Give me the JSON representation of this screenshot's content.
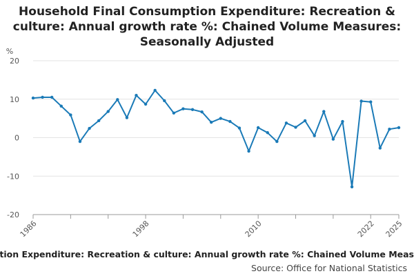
{
  "chart_data": {
    "type": "line",
    "title_lines": [
      "Household Final Consumption Expenditure: Recreation &",
      "culture: Annual growth rate %: Chained Volume Measures:",
      "Seasonally Adjusted"
    ],
    "ylabel": "%",
    "ylim": [
      -20,
      20
    ],
    "yticks": [
      -20,
      -10,
      0,
      10,
      20
    ],
    "xlim": [
      1986,
      2025
    ],
    "xtick_labels": [
      "1986",
      "1998",
      "2010",
      "2022",
      "2025"
    ],
    "series": [
      {
        "name": "Household Final Consumption Expenditure: Recreation & culture: Annual growth rate %: Chained Volume Measures: Seasonally Adjusted",
        "color": "#1a7ab7",
        "x": [
          1986,
          1987,
          1988,
          1989,
          1990,
          1991,
          1992,
          1993,
          1994,
          1995,
          1996,
          1997,
          1998,
          1999,
          2000,
          2001,
          2002,
          2003,
          2004,
          2005,
          2006,
          2007,
          2008,
          2009,
          2010,
          2011,
          2012,
          2013,
          2014,
          2015,
          2016,
          2017,
          2018,
          2019,
          2020,
          2021,
          2022,
          2023,
          2024,
          2025
        ],
        "values": [
          10.3,
          10.5,
          10.5,
          8.2,
          5.9,
          -1.0,
          2.4,
          4.4,
          6.8,
          9.9,
          5.2,
          11.0,
          8.7,
          12.3,
          9.6,
          6.4,
          7.5,
          7.3,
          6.7,
          4.0,
          5.0,
          4.2,
          2.5,
          -3.5,
          2.6,
          1.3,
          -1.0,
          3.8,
          2.7,
          4.4,
          0.5,
          6.8,
          -0.4,
          4.2,
          -12.8,
          9.5,
          9.3,
          -2.7,
          2.2,
          2.6
        ]
      }
    ],
    "legend": "Household Final Consumption Expenditure: Recreation & culture: Annual growth rate %: Chained Volume Measures: Seasonally Adjusted",
    "source": "Source: Office for National Statistics"
  }
}
